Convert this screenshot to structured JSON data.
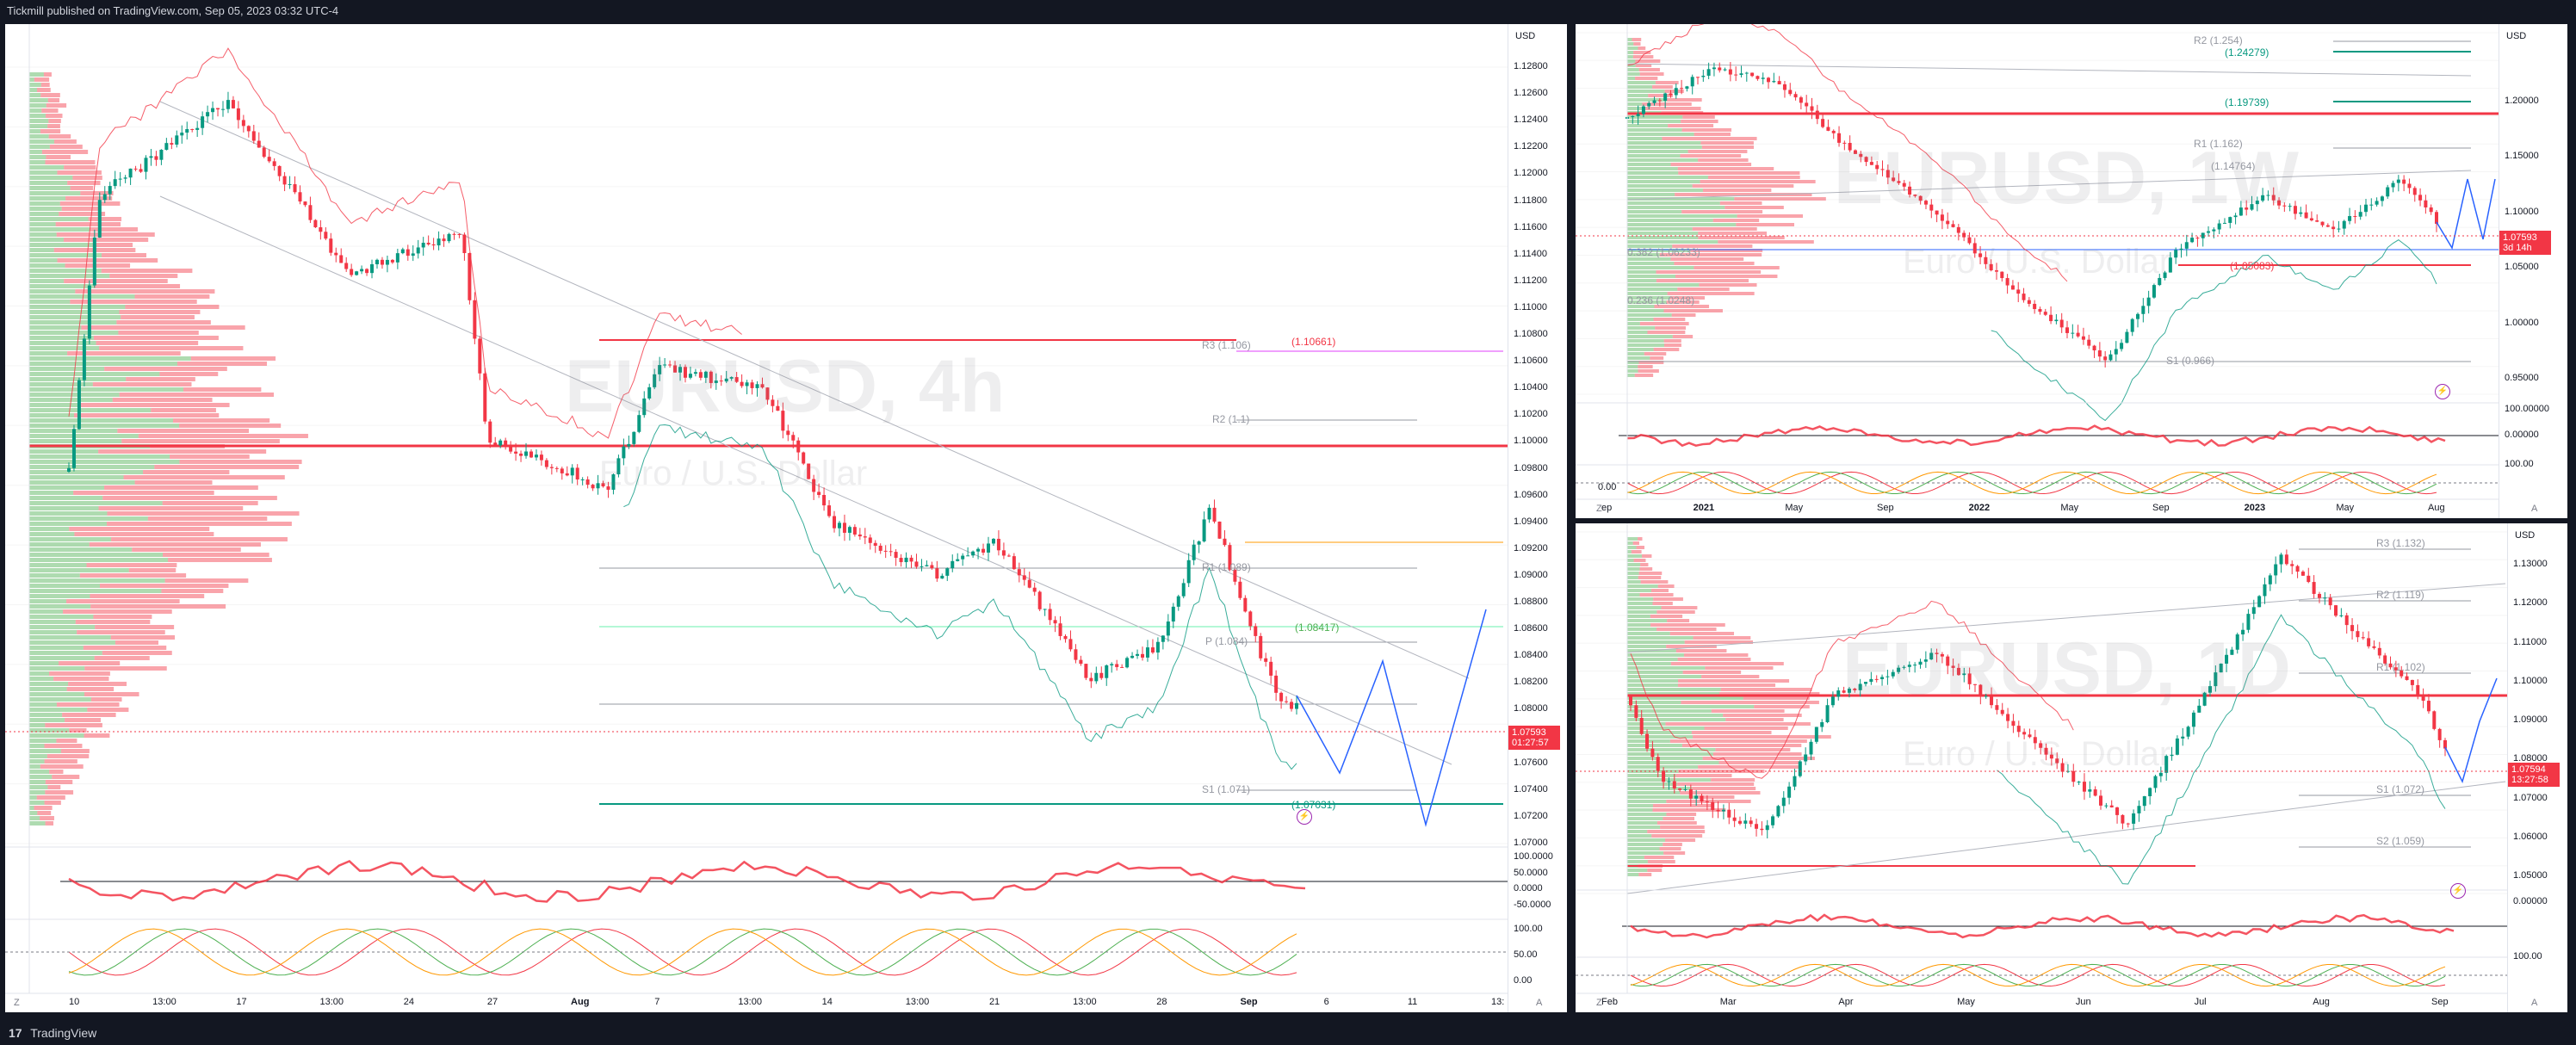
{
  "header": {
    "text": "Tickmill published on TradingView.com, Sep 05, 2023 03:32 UTC-4"
  },
  "footer": {
    "logo": "17",
    "brand": "TradingView"
  },
  "charts": {
    "h4": {
      "symbol": "EURUSD, 4h",
      "description": "Euro / U.S. Dollar",
      "currency": "USD",
      "price_ticks": [
        "1.12800",
        "1.12600",
        "1.12400",
        "1.12200",
        "1.12000",
        "1.11800",
        "1.11600",
        "1.11400",
        "1.11200",
        "1.11000",
        "1.10800",
        "1.10600",
        "1.10400",
        "1.10200",
        "1.10000",
        "1.09800",
        "1.09600",
        "1.09400",
        "1.09200",
        "1.09000",
        "1.08800",
        "1.08600",
        "1.08400",
        "1.08200",
        "1.08000",
        "1.07800",
        "1.07600",
        "1.07400",
        "1.07200",
        "1.07000"
      ],
      "osc1_ticks": [
        "100.0000",
        "50.0000",
        "0.0000",
        "-50.0000"
      ],
      "osc2_ticks": [
        "100.00",
        "50.00",
        "0.00"
      ],
      "last_price": "1.07593",
      "countdown": "01:27:57",
      "time_labels": [
        {
          "t": "10",
          "bold": false
        },
        {
          "t": "13:00",
          "bold": false
        },
        {
          "t": "17",
          "bold": false
        },
        {
          "t": "13:00",
          "bold": false
        },
        {
          "t": "24",
          "bold": false
        },
        {
          "t": "27",
          "bold": false
        },
        {
          "t": "Aug",
          "bold": true
        },
        {
          "t": "7",
          "bold": false
        },
        {
          "t": "13:00",
          "bold": false
        },
        {
          "t": "14",
          "bold": false
        },
        {
          "t": "13:00",
          "bold": false
        },
        {
          "t": "21",
          "bold": false
        },
        {
          "t": "13:00",
          "bold": false
        },
        {
          "t": "28",
          "bold": false
        },
        {
          "t": "Sep",
          "bold": true
        },
        {
          "t": "6",
          "bold": false
        },
        {
          "t": "11",
          "bold": false
        },
        {
          "t": "13:",
          "bold": false
        }
      ],
      "levels": [
        {
          "label": "R3 (1.106)",
          "color": "#9598a1"
        },
        {
          "label": "(1.10661)",
          "color": "#f23645"
        },
        {
          "label": "R2 (1.1)",
          "color": "#9598a1"
        },
        {
          "label": "R1 (1.089)",
          "color": "#9598a1"
        },
        {
          "label": "(1.08417)",
          "color": "#4caf50"
        },
        {
          "label": "P (1.084)",
          "color": "#9598a1"
        },
        {
          "label": "S1 (1.071)",
          "color": "#9598a1"
        },
        {
          "label": "(1.07031)",
          "color": "#089981"
        }
      ],
      "corner_left": "Z",
      "corner_right": "A"
    },
    "w1": {
      "symbol": "EURUSD, 1W",
      "description": "Euro / U.S. Dollar",
      "currency": "USD",
      "price_ticks": [
        "1.20000",
        "1.15000",
        "1.10000",
        "1.05000",
        "1.00000",
        "0.95000"
      ],
      "osc1_ticks": [
        "100.00000",
        "0.00000"
      ],
      "osc2_ticks": [
        "100.00"
      ],
      "osc_left": "0.00",
      "last_price": "1.07593",
      "countdown": "3d 14h",
      "time_labels": [
        {
          "t": "ep",
          "bold": false
        },
        {
          "t": "2021",
          "bold": true
        },
        {
          "t": "May",
          "bold": false
        },
        {
          "t": "Sep",
          "bold": false
        },
        {
          "t": "2022",
          "bold": true
        },
        {
          "t": "May",
          "bold": false
        },
        {
          "t": "Sep",
          "bold": false
        },
        {
          "t": "2023",
          "bold": true
        },
        {
          "t": "May",
          "bold": false
        },
        {
          "t": "Aug",
          "bold": false
        }
      ],
      "levels": [
        {
          "label": "R2 (1.254)",
          "color": "#9598a1"
        },
        {
          "label": "(1.24279)",
          "color": "#089981"
        },
        {
          "label": "(1.19739)",
          "color": "#089981"
        },
        {
          "label": "R1 (1.162)",
          "color": "#9598a1"
        },
        {
          "label": "(1.14764)",
          "color": "#9598a1"
        },
        {
          "label": "0.382 (1.06233)",
          "color": "#9598a1"
        },
        {
          "label": "0.236 (1.0248)",
          "color": "#9598a1"
        },
        {
          "label": "(1.05083)",
          "color": "#f23645"
        },
        {
          "label": "S1 (0.966)",
          "color": "#9598a1"
        }
      ],
      "corner_left": "Z",
      "corner_right": "A"
    },
    "d1": {
      "symbol": "EURUSD, 1D",
      "description": "Euro / U.S. Dollar",
      "currency": "USD",
      "price_ticks": [
        "1.13000",
        "1.12000",
        "1.11000",
        "1.10000",
        "1.09000",
        "1.08000",
        "1.07000",
        "1.06000",
        "1.05000"
      ],
      "osc1_ticks": [
        "0.00000"
      ],
      "osc2_ticks": [
        "100.00"
      ],
      "last_price": "1.07594",
      "countdown": "13:27:58",
      "time_labels": [
        {
          "t": "Feb",
          "bold": false
        },
        {
          "t": "Mar",
          "bold": false
        },
        {
          "t": "Apr",
          "bold": false
        },
        {
          "t": "May",
          "bold": false
        },
        {
          "t": "Jun",
          "bold": false
        },
        {
          "t": "Jul",
          "bold": false
        },
        {
          "t": "Aug",
          "bold": false
        },
        {
          "t": "Sep",
          "bold": false
        }
      ],
      "levels": [
        {
          "label": "R3 (1.132)",
          "color": "#9598a1"
        },
        {
          "label": "R2 (1.119)",
          "color": "#9598a1"
        },
        {
          "label": "R1 (1.102)",
          "color": "#9598a1"
        },
        {
          "label": "S1 (1.072)",
          "color": "#9598a1"
        },
        {
          "label": "S2 (1.059)",
          "color": "#9598a1"
        }
      ],
      "corner_left": "Z",
      "corner_right": "A"
    }
  },
  "colors": {
    "up": "#089981",
    "down": "#f23645",
    "projection": "#2962ff",
    "background": "#131722"
  },
  "icons": [
    "lightning-icon",
    "tradingview-logo-icon"
  ]
}
